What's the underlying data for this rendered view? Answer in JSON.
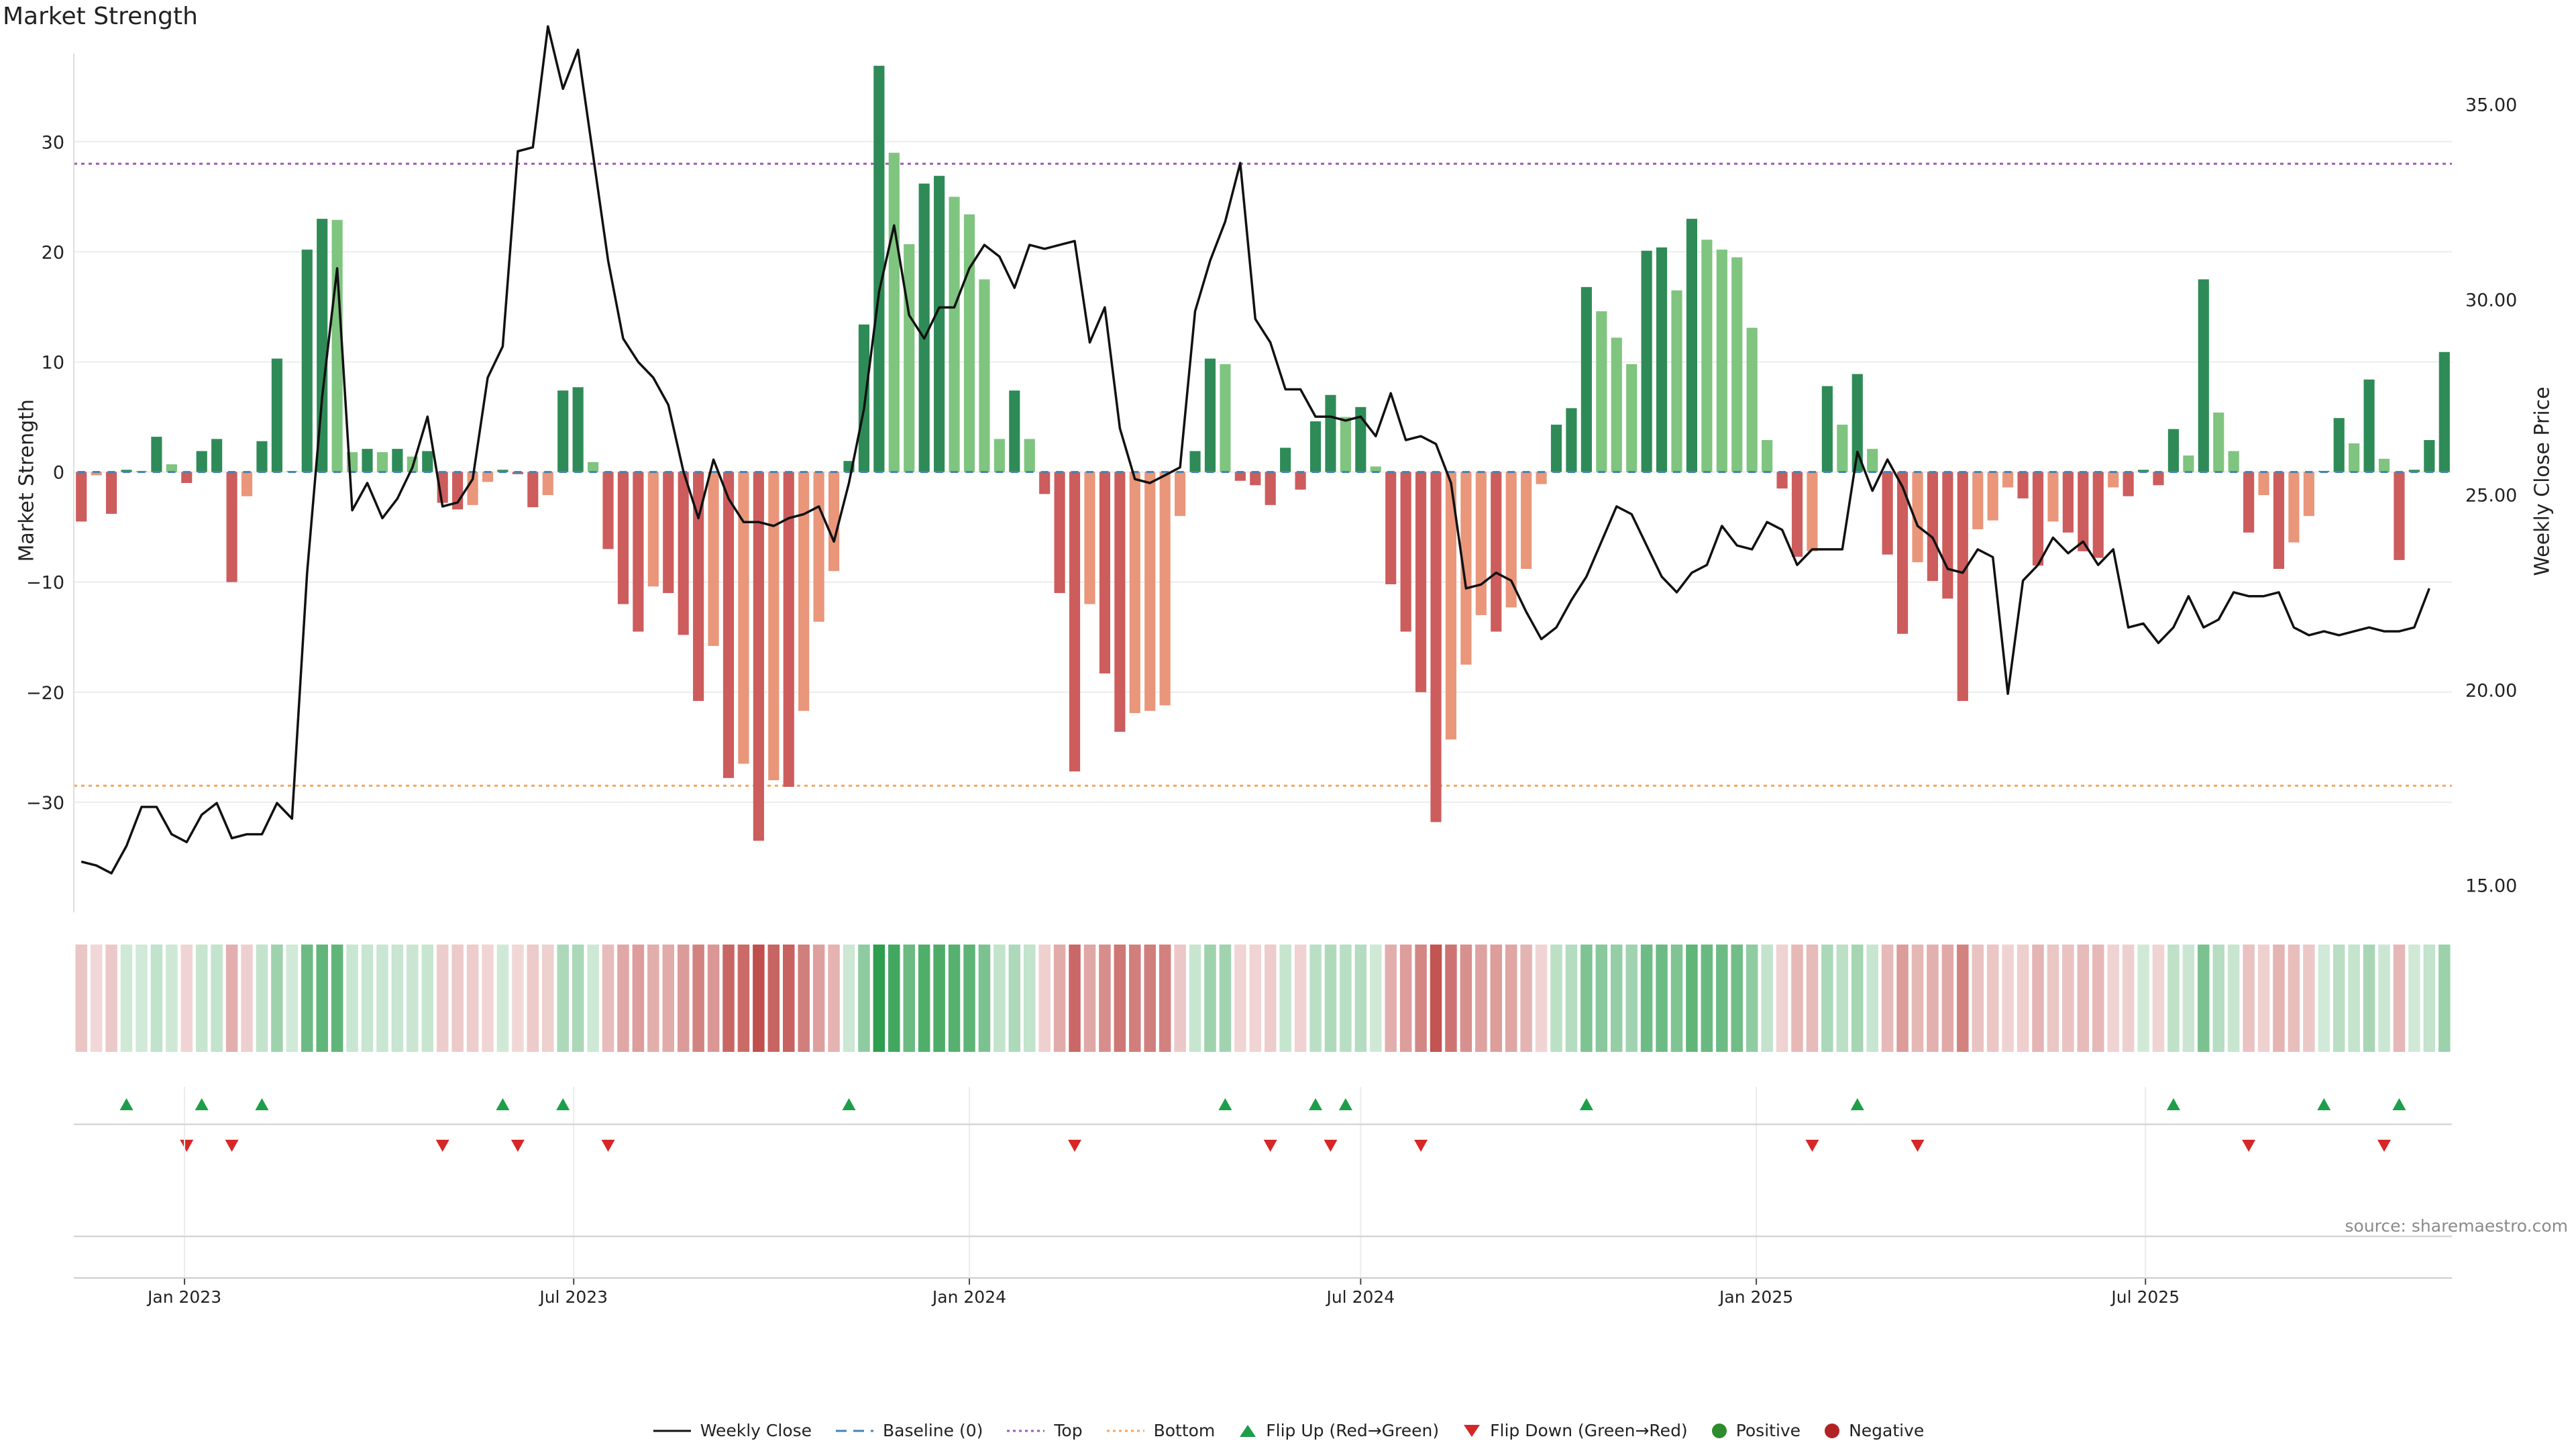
{
  "title": "Market Strength",
  "source": "source: sharemaestro.com",
  "legend": {
    "weekly_close": "Weekly Close",
    "baseline": "Baseline (0)",
    "top": "Top",
    "bottom": "Bottom",
    "flip_up": "Flip Up (Red→Green)",
    "flip_down": "Flip Down (Green→Red)",
    "positive": "Positive",
    "negative": "Negative"
  },
  "colors": {
    "pos_strong": "#2e8b57",
    "pos_light": "#7fc47f",
    "neg_strong": "#cd5c5c",
    "neg_light": "#e9967a",
    "top_line": "#9b59b6",
    "bottom_line": "#f5a55a",
    "baseline": "#4682b4",
    "price": "#111111",
    "flip_up": "#1e9e4a",
    "flip_down": "#d62728"
  },
  "chart_data": {
    "type": "bar",
    "xlabel": "",
    "ylabel": "Market Strength",
    "y2label": "Weekly Close Price",
    "ylim": [
      -40,
      38
    ],
    "y2lim": [
      14.3,
      36.3
    ],
    "yticks": [
      "30",
      "20",
      "10",
      "0",
      "−10",
      "−20",
      "−30"
    ],
    "y2ticks": [
      "35.00",
      "30.00",
      "25.00",
      "20.00",
      "15.00"
    ],
    "xticks": [
      "Jan 2023",
      "Jul 2023",
      "Jan 2024",
      "Jul 2024",
      "Jan 2025",
      "Jul 2025"
    ],
    "top": 28,
    "bottom": -28.5,
    "grid": true,
    "legend_position": "bottom-center",
    "strength": [
      -4.5,
      -0.3,
      -3.8,
      0.2,
      0.1,
      3.2,
      0.7,
      -1.0,
      1.9,
      3.0,
      -10.0,
      -2.2,
      2.8,
      10.3,
      0.1,
      20.2,
      23.0,
      22.9,
      1.8,
      2.1,
      1.8,
      2.1,
      1.4,
      1.9,
      -2.8,
      -3.4,
      -3.0,
      -0.9,
      0.2,
      -0.2,
      -3.2,
      -2.1,
      7.4,
      7.7,
      0.9,
      -7.0,
      -12.0,
      -14.5,
      -10.4,
      -11.0,
      -14.8,
      -20.8,
      -15.8,
      -27.8,
      -26.5,
      -33.5,
      -28.0,
      -28.6,
      -21.7,
      -13.6,
      -9.0,
      1.0,
      13.4,
      36.9,
      29.0,
      20.7,
      26.2,
      26.9,
      25.0,
      23.4,
      17.5,
      3.0,
      7.4,
      3.0,
      -2.0,
      -11.0,
      -27.2,
      -12.0,
      -18.3,
      -23.6,
      -21.9,
      -21.7,
      -21.2,
      -4.0,
      1.9,
      10.3,
      9.8,
      -0.8,
      -1.2,
      -3.0,
      2.2,
      -1.6,
      4.6,
      7.0,
      5.0,
      5.9,
      0.5,
      -10.2,
      -14.5,
      -20.0,
      -31.8,
      -24.3,
      -17.5,
      -13.0,
      -14.5,
      -12.3,
      -8.8,
      -1.1,
      4.3,
      5.8,
      16.8,
      14.6,
      12.2,
      9.8,
      20.1,
      20.4,
      16.5,
      23.0,
      21.1,
      20.2,
      19.5,
      13.1,
      2.9,
      -1.5,
      -7.7,
      -7.2,
      7.8,
      4.3,
      8.9,
      2.1,
      -7.5,
      -14.7,
      -8.2,
      -9.9,
      -11.5,
      -20.8,
      -5.2,
      -4.4,
      -1.4,
      -2.4,
      -8.5,
      -4.5,
      -5.5,
      -7.2,
      -7.8,
      -1.4,
      -2.2,
      0.2,
      -1.2,
      3.9,
      1.5,
      17.5,
      5.4,
      1.9,
      -5.5,
      -2.1,
      -8.8,
      -6.4,
      -4.0,
      0.1,
      4.9,
      2.6,
      8.4,
      1.2,
      -8.0,
      0.2,
      2.9,
      10.9
    ],
    "price": [
      15.6,
      15.5,
      15.3,
      16.0,
      17.0,
      17.0,
      16.3,
      16.1,
      16.8,
      17.1,
      16.2,
      16.3,
      16.3,
      17.1,
      16.7,
      23.0,
      27.5,
      30.8,
      24.6,
      25.3,
      24.4,
      24.9,
      25.7,
      27.0,
      24.7,
      24.8,
      25.4,
      28.0,
      28.8,
      33.8,
      33.9,
      37.0,
      35.4,
      36.4,
      33.7,
      31.0,
      29.0,
      28.4,
      28.0,
      27.3,
      25.6,
      24.4,
      25.9,
      24.9,
      24.3,
      24.3,
      24.2,
      24.4,
      24.5,
      24.7,
      23.8,
      25.3,
      27.2,
      30.2,
      31.9,
      29.6,
      29.0,
      29.8,
      29.8,
      30.8,
      31.4,
      31.1,
      30.3,
      31.4,
      31.3,
      31.4,
      31.5,
      28.9,
      29.8,
      26.7,
      25.4,
      25.3,
      25.5,
      25.7,
      29.7,
      31.0,
      32.0,
      33.5,
      29.5,
      28.9,
      27.7,
      27.7,
      27.0,
      27.0,
      26.9,
      27.0,
      26.5,
      27.6,
      26.4,
      26.5,
      26.3,
      25.3,
      22.6,
      22.7,
      23.0,
      22.8,
      22.0,
      21.3,
      21.6,
      22.3,
      22.9,
      23.8,
      24.7,
      24.5,
      23.7,
      22.9,
      22.5,
      23.0,
      23.2,
      24.2,
      23.7,
      23.6,
      24.3,
      24.1,
      23.2,
      23.6,
      23.6,
      23.6,
      26.1,
      25.1,
      25.9,
      25.2,
      24.2,
      23.9,
      23.1,
      23.0,
      23.6,
      23.4,
      19.9,
      22.8,
      23.2,
      23.9,
      23.5,
      23.8,
      23.2,
      23.6,
      21.6,
      21.7,
      21.2,
      21.6,
      22.4,
      21.6,
      21.8,
      22.5,
      22.4,
      22.4,
      22.5,
      21.6,
      21.4,
      21.5,
      21.4,
      21.5,
      21.6,
      21.5,
      21.5,
      21.6,
      22.6
    ],
    "flip_up_weeks": [
      3,
      8,
      12,
      28,
      32,
      51,
      76,
      82,
      84,
      100,
      118,
      139,
      149,
      154
    ],
    "flip_down_weeks": [
      7,
      10,
      24,
      29,
      35,
      66,
      79,
      83,
      89,
      115,
      122,
      144,
      153
    ],
    "first_week": "2022-11-14"
  }
}
